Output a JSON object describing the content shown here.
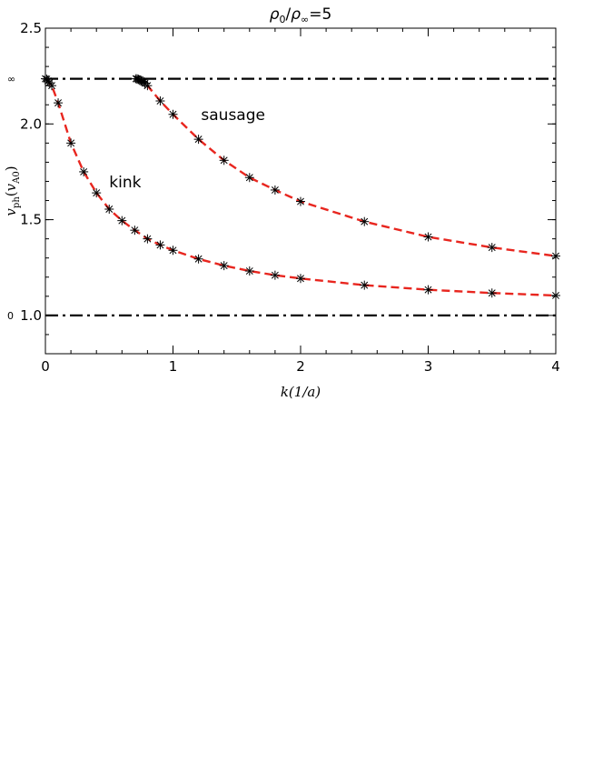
{
  "chart_data": {
    "type": "line",
    "title": "ρ₀/ρ∞=5",
    "title_parts": {
      "rho": "ρ",
      "sub0": "0",
      "slash": "/",
      "rho2": "ρ",
      "subinf": "∞",
      "eq": "=5"
    },
    "xlabel": "k(1/a)",
    "ylabel": "v_ph(v_A0)",
    "ylabel_parts": {
      "v": "v",
      "ph": "ph",
      "open": "(",
      "v2": "v",
      "a0": "A0",
      "close": ")"
    },
    "xlim": [
      0,
      4
    ],
    "ylim": [
      0.8,
      2.5
    ],
    "x_ticks": [
      0,
      1,
      2,
      3,
      4
    ],
    "x_tick_labels": [
      "0",
      "1",
      "2",
      "3",
      "4"
    ],
    "y_ticks": [
      1.0,
      1.5,
      2.0,
      2.5
    ],
    "y_tick_labels": [
      "1.0",
      "1.5",
      "2.0",
      "2.5"
    ],
    "grid": false,
    "reference_lines": [
      {
        "y": 2.236,
        "style": "dash-dot",
        "color": "#000000",
        "edge_label": "∞"
      },
      {
        "y": 1.0,
        "style": "dash-dot",
        "color": "#000000",
        "edge_label": "0"
      }
    ],
    "annotations": [
      {
        "text": "sausage",
        "x": 1.22,
        "y": 2.02
      },
      {
        "text": "kink",
        "x": 0.5,
        "y": 1.67
      }
    ],
    "series": [
      {
        "label": "kink",
        "line_color": "#e8261f",
        "line_style": "dashed",
        "marker": "asterisk",
        "x": [
          0.0,
          0.01,
          0.02,
          0.03,
          0.05,
          0.1,
          0.2,
          0.3,
          0.4,
          0.5,
          0.6,
          0.7,
          0.8,
          0.9,
          1.0,
          1.2,
          1.4,
          1.6,
          1.8,
          2.0,
          2.5,
          3.0,
          3.5,
          4.0
        ],
        "y": [
          2.236,
          2.234,
          2.225,
          2.215,
          2.2,
          2.11,
          1.9,
          1.75,
          1.64,
          1.555,
          1.495,
          1.445,
          1.4,
          1.368,
          1.34,
          1.295,
          1.26,
          1.232,
          1.21,
          1.193,
          1.158,
          1.134,
          1.117,
          1.104
        ]
      },
      {
        "label": "sausage",
        "line_color": "#e8261f",
        "line_style": "dashed",
        "marker": "asterisk",
        "x": [
          0.71,
          0.72,
          0.73,
          0.74,
          0.75,
          0.76,
          0.77,
          0.78,
          0.8,
          0.9,
          1.0,
          1.2,
          1.4,
          1.6,
          1.8,
          2.0,
          2.5,
          3.0,
          3.5,
          4.0
        ],
        "y": [
          2.236,
          2.235,
          2.233,
          2.23,
          2.226,
          2.222,
          2.218,
          2.213,
          2.2,
          2.12,
          2.05,
          1.92,
          1.81,
          1.72,
          1.655,
          1.595,
          1.49,
          1.41,
          1.355,
          1.31
        ]
      }
    ]
  }
}
